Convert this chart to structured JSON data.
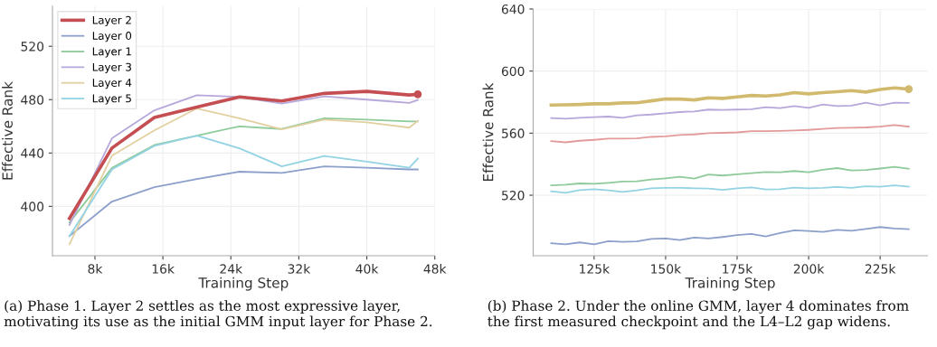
{
  "chart_data": [
    {
      "type": "line",
      "xlabel": "Training Step",
      "ylabel": "Effective Rank",
      "x": [
        5000,
        10000,
        15000,
        20000,
        25000,
        30000,
        35000,
        40000,
        45000,
        46000
      ],
      "xlim": [
        3000,
        48000
      ],
      "xticks": [
        {
          "value": 8000,
          "label": "8k"
        },
        {
          "value": 16000,
          "label": "16k"
        },
        {
          "value": 24000,
          "label": "24k"
        },
        {
          "value": 32000,
          "label": "32k"
        },
        {
          "value": 40000,
          "label": "40k"
        },
        {
          "value": 48000,
          "label": "48k"
        }
      ],
      "ylim": [
        363,
        550
      ],
      "yticks": [
        400,
        440,
        480,
        520
      ],
      "grid": true,
      "legend": "top left",
      "series": [
        {
          "name": "Layer 2",
          "color": "#c44e52",
          "values": [
            391,
            443.7,
            466.6,
            474.5,
            482,
            479,
            484.7,
            486.2,
            483.5,
            484
          ]
        },
        {
          "type": "scatter",
          "color": "#c44e52",
          "x": [
            46000
          ],
          "values": [
            484
          ]
        },
        {
          "name": "Layer 0",
          "color": "#8da0cb",
          "values": [
            377.7,
            403.6,
            414.4,
            420.5,
            426,
            425,
            430,
            429,
            427.7,
            427.7
          ]
        },
        {
          "name": "Layer 1",
          "color": "#8fca9a",
          "values": [
            387.8,
            428.8,
            446,
            453,
            460,
            458,
            466,
            465,
            463.7,
            463.7
          ]
        },
        {
          "name": "Layer 3",
          "color": "#b6a8da",
          "values": [
            386,
            451,
            472,
            483.3,
            482,
            477,
            482.4,
            480,
            477.5,
            479.7
          ]
        },
        {
          "name": "Layer 4",
          "color": "#e3d0a0",
          "values": [
            371.6,
            438,
            457,
            473.4,
            466,
            457.7,
            465,
            463,
            459,
            464
          ]
        },
        {
          "name": "Layer 5",
          "color": "#93d3e3",
          "values": [
            377.7,
            427.7,
            445.3,
            453,
            443.5,
            430,
            437.8,
            433.6,
            429,
            435.8
          ]
        }
      ],
      "annotations": [
        "(a) Phase 1. Layer 2 settles as the most expressive layer, motivating its use as the initial GMM input layer for Phase 2."
      ]
    },
    {
      "type": "line",
      "xlabel": "Training Step",
      "ylabel": "Effective Rank",
      "x": [
        110000,
        115000,
        120000,
        125000,
        130000,
        135000,
        140000,
        145000,
        150000,
        155000,
        160000,
        165000,
        170000,
        175000,
        180000,
        185000,
        190000,
        195000,
        200000,
        205000,
        210000,
        215000,
        220000,
        225000,
        230000,
        235000
      ],
      "xlim": [
        103700,
        241600
      ],
      "xticks": [
        {
          "value": 125000,
          "label": "125k"
        },
        {
          "value": 150000,
          "label": "150k"
        },
        {
          "value": 175000,
          "label": "175k"
        },
        {
          "value": 200000,
          "label": "200k"
        },
        {
          "value": 225000,
          "label": "225k"
        }
      ],
      "ylim": [
        481,
        640
      ],
      "yticks": [
        520,
        560,
        600,
        640
      ],
      "grid": true,
      "series": [
        {
          "type": "scatter",
          "color": "#d1b96e",
          "x": [
            235000
          ],
          "values": [
            588.4
          ]
        },
        {
          "color": "#d1b96e",
          "values": [
            578.1,
            578.3,
            578.5,
            578.9,
            578.9,
            579.5,
            579.6,
            580.8,
            582,
            582,
            581.4,
            582.8,
            582.4,
            583.4,
            584.3,
            583.9,
            584.7,
            586.1,
            585.3,
            586.1,
            586.7,
            587.4,
            586.5,
            588.2,
            589.2,
            588.4
          ]
        },
        {
          "color": "#b6a8da",
          "values": [
            569.7,
            569.3,
            569.9,
            570.3,
            570.7,
            569.9,
            571.5,
            572,
            572.8,
            573.6,
            574,
            575.2,
            575,
            575.2,
            575.4,
            576.7,
            576.1,
            577.5,
            576.3,
            578.5,
            577.5,
            577.7,
            579.6,
            577.9,
            579.6,
            579.5
          ]
        },
        {
          "color": "#e39a9b",
          "values": [
            554.9,
            554.1,
            555.1,
            555.7,
            556.5,
            556.5,
            556.6,
            557.6,
            558,
            558.8,
            559.2,
            560,
            560.2,
            560.5,
            561.3,
            561.3,
            561.5,
            561.7,
            562.1,
            562.7,
            563.3,
            563.5,
            563.7,
            564.2,
            565.2,
            564.2
          ]
        },
        {
          "color": "#8fca9a",
          "values": [
            526.4,
            526.8,
            527.6,
            527.4,
            528,
            528.8,
            529,
            530.1,
            530.9,
            531.9,
            530.7,
            533.3,
            532.7,
            533.5,
            534.2,
            535,
            534.8,
            535.6,
            534.8,
            536.4,
            537.5,
            536,
            536.2,
            537.2,
            538.3,
            537
          ]
        },
        {
          "color": "#93d3e3",
          "values": [
            522.5,
            521.6,
            523.3,
            523.9,
            523.1,
            522.1,
            523.1,
            524.5,
            524.7,
            524.7,
            524.5,
            524.3,
            523.5,
            524.5,
            525.1,
            523.7,
            523.9,
            524.9,
            524.5,
            524.7,
            525.3,
            524.7,
            525.8,
            525.5,
            526.4,
            525.5
          ]
        },
        {
          "color": "#8da0cb",
          "values": [
            489,
            488.4,
            489.6,
            488.4,
            490.4,
            490,
            490.2,
            491.9,
            492.1,
            491.1,
            492.7,
            492.1,
            493.1,
            494.3,
            495,
            493.5,
            495.6,
            497.4,
            497,
            496.4,
            497.7,
            497.1,
            498.3,
            499.5,
            498.5,
            498.1
          ]
        }
      ],
      "annotations": [
        "(b) Phase 2. Under the online GMM, layer 4 dominates from the first measured checkpoint and the L4–L2 gap widens."
      ]
    }
  ]
}
